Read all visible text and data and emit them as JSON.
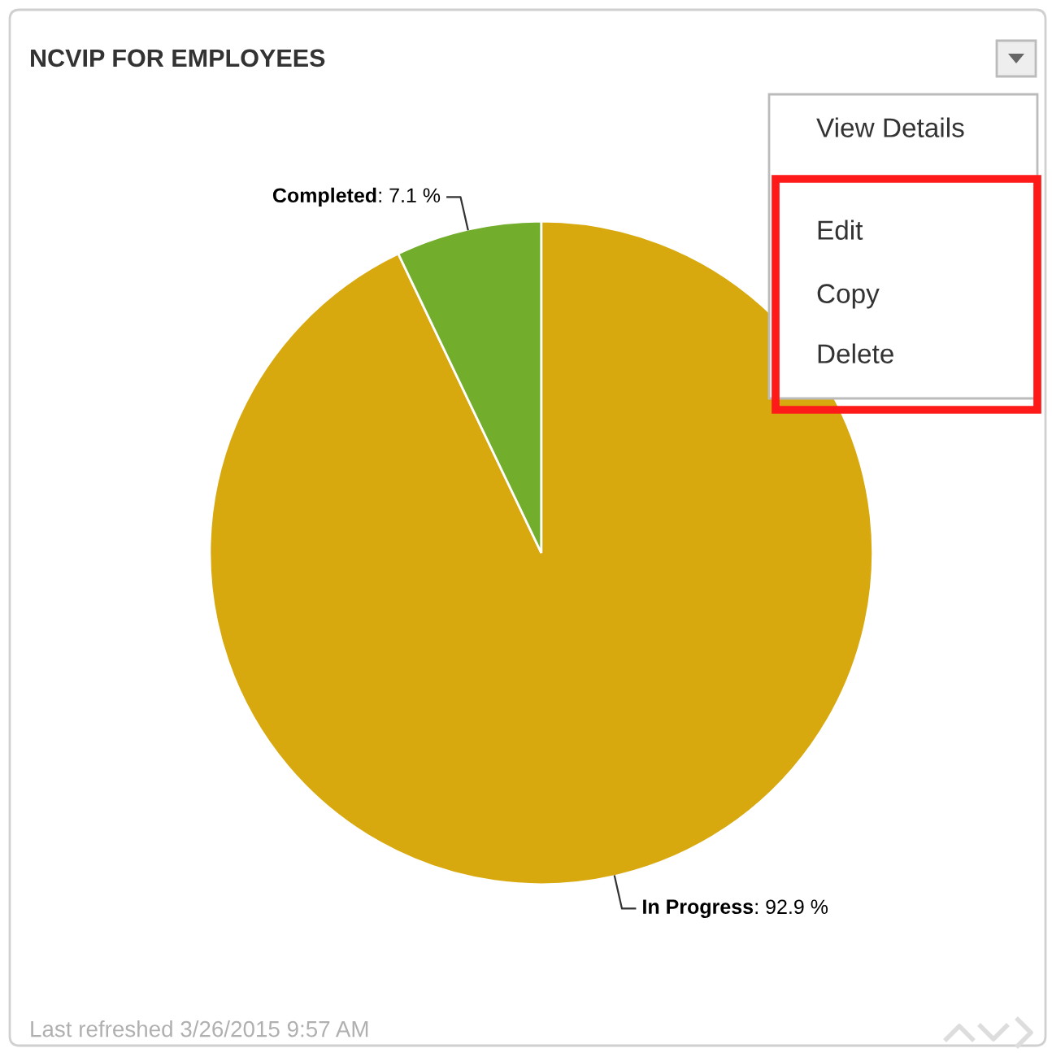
{
  "chart_data": {
    "type": "pie",
    "title": "NCVIP FOR EMPLOYEES",
    "categories": [
      "In Progress",
      "Completed"
    ],
    "values": [
      92.9,
      7.1
    ],
    "value_labels": [
      ": 92.9 %",
      ": 7.1 %"
    ],
    "colors": [
      "#d8a90e",
      "#72ad2b"
    ],
    "legend": false,
    "annotations": [
      "View Details",
      "Edit",
      "Copy",
      "Delete",
      "Last refreshed 3/26/2015 9:57 AM"
    ]
  }
}
